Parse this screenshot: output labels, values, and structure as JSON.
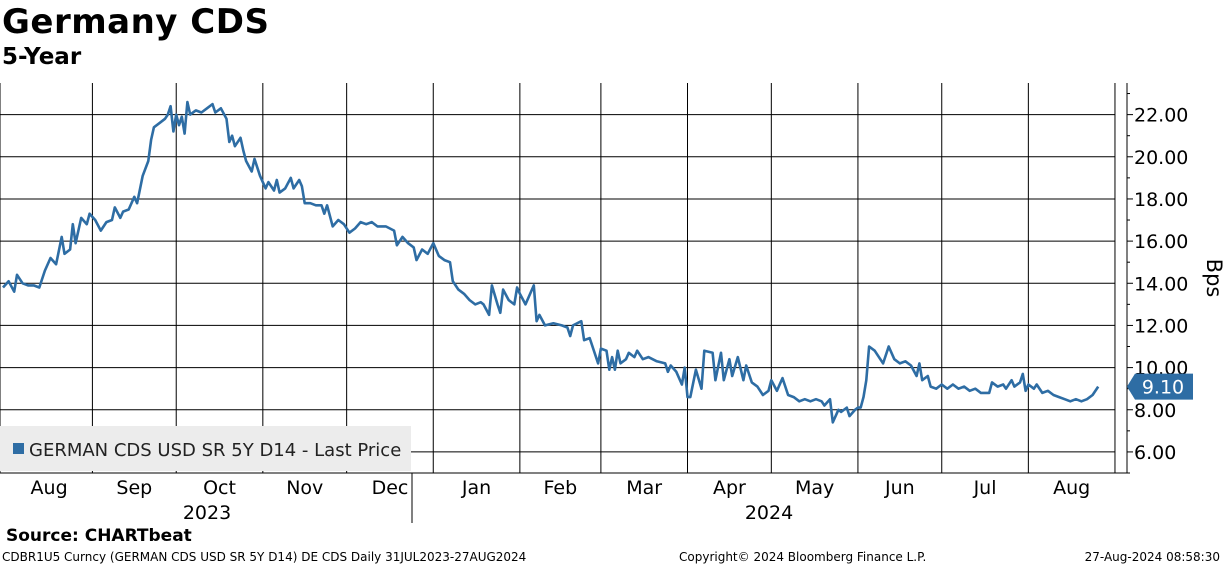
{
  "header": {
    "title": "Germany CDS",
    "subtitle": "5-Year"
  },
  "footer": {
    "source": "Source:  CHARTbeat",
    "ticker_line": "CDBR1U5 Curncy (GERMAN CDS USD SR 5Y D14) DE CDS  Daily 31JUL2023-27AUG2024",
    "copyright": "Copyright© 2024 Bloomberg Finance L.P.",
    "timestamp": "27-Aug-2024 08:58:30"
  },
  "chart_data": {
    "type": "line",
    "ylabel": "Bps",
    "ylim": [
      5.0,
      23.5
    ],
    "y_ticks": [
      6,
      8,
      10,
      12,
      14,
      16,
      18,
      20,
      22
    ],
    "y_tick_labels": [
      "6.00",
      "8.00",
      "10.00",
      "12.00",
      "14.00",
      "16.00",
      "18.00",
      "20.00",
      "22.00"
    ],
    "x_range": [
      "2023-07-31",
      "2024-08-27"
    ],
    "month_labels": [
      "Aug",
      "Sep",
      "Oct",
      "Nov",
      "Dec",
      "Jan",
      "Feb",
      "Mar",
      "Apr",
      "May",
      "Jun",
      "Jul",
      "Aug"
    ],
    "year_labels": [
      "2023",
      "2024"
    ],
    "grid": true,
    "legend": {
      "position": "bottom-left",
      "entries": [
        "GERMAN CDS USD SR 5Y D14 - Last Price"
      ]
    },
    "last_value_label": "9.10",
    "colors": {
      "line": "#2e6da4",
      "badge": "#2e6da4",
      "grid": "#000000"
    },
    "series": [
      {
        "name": "GERMAN CDS USD SR 5Y D14 - Last Price",
        "points": [
          [
            "2023-07-31",
            13.8
          ],
          [
            "2023-08-02",
            14.1
          ],
          [
            "2023-08-04",
            13.6
          ],
          [
            "2023-08-05",
            14.4
          ],
          [
            "2023-08-07",
            14.0
          ],
          [
            "2023-08-09",
            13.9
          ],
          [
            "2023-08-11",
            13.9
          ],
          [
            "2023-08-13",
            13.8
          ],
          [
            "2023-08-15",
            14.6
          ],
          [
            "2023-08-17",
            15.2
          ],
          [
            "2023-08-19",
            14.9
          ],
          [
            "2023-08-21",
            16.2
          ],
          [
            "2023-08-22",
            15.4
          ],
          [
            "2023-08-24",
            15.6
          ],
          [
            "2023-08-25",
            16.8
          ],
          [
            "2023-08-26",
            15.9
          ],
          [
            "2023-08-28",
            17.1
          ],
          [
            "2023-08-30",
            16.8
          ],
          [
            "2023-08-31",
            17.3
          ],
          [
            "2023-09-02",
            17.0
          ],
          [
            "2023-09-04",
            16.5
          ],
          [
            "2023-09-06",
            16.9
          ],
          [
            "2023-09-08",
            17.0
          ],
          [
            "2023-09-09",
            17.6
          ],
          [
            "2023-09-11",
            17.1
          ],
          [
            "2023-09-12",
            17.4
          ],
          [
            "2023-09-14",
            17.5
          ],
          [
            "2023-09-16",
            18.1
          ],
          [
            "2023-09-17",
            17.8
          ],
          [
            "2023-09-19",
            19.1
          ],
          [
            "2023-09-21",
            19.8
          ],
          [
            "2023-09-22",
            20.8
          ],
          [
            "2023-09-23",
            21.4
          ],
          [
            "2023-09-25",
            21.6
          ],
          [
            "2023-09-27",
            21.8
          ],
          [
            "2023-09-28",
            22.0
          ],
          [
            "2023-09-29",
            22.4
          ],
          [
            "2023-09-30",
            21.2
          ],
          [
            "2023-10-01",
            22.0
          ],
          [
            "2023-10-02",
            21.5
          ],
          [
            "2023-10-03",
            21.9
          ],
          [
            "2023-10-04",
            21.1
          ],
          [
            "2023-10-05",
            22.6
          ],
          [
            "2023-10-06",
            22.0
          ],
          [
            "2023-10-08",
            22.2
          ],
          [
            "2023-10-10",
            22.1
          ],
          [
            "2023-10-12",
            22.3
          ],
          [
            "2023-10-14",
            22.5
          ],
          [
            "2023-10-15",
            22.1
          ],
          [
            "2023-10-17",
            22.3
          ],
          [
            "2023-10-19",
            21.8
          ],
          [
            "2023-10-20",
            20.7
          ],
          [
            "2023-10-21",
            21.0
          ],
          [
            "2023-10-22",
            20.5
          ],
          [
            "2023-10-24",
            20.9
          ],
          [
            "2023-10-25",
            20.3
          ],
          [
            "2023-10-26",
            19.8
          ],
          [
            "2023-10-28",
            19.3
          ],
          [
            "2023-10-29",
            19.9
          ],
          [
            "2023-10-31",
            19.1
          ],
          [
            "2023-11-02",
            18.5
          ],
          [
            "2023-11-03",
            18.8
          ],
          [
            "2023-11-05",
            18.4
          ],
          [
            "2023-11-06",
            18.9
          ],
          [
            "2023-11-07",
            18.3
          ],
          [
            "2023-11-09",
            18.5
          ],
          [
            "2023-11-11",
            19.0
          ],
          [
            "2023-11-12",
            18.5
          ],
          [
            "2023-11-14",
            18.9
          ],
          [
            "2023-11-15",
            18.6
          ],
          [
            "2023-11-16",
            17.8
          ],
          [
            "2023-11-18",
            17.8
          ],
          [
            "2023-11-20",
            17.7
          ],
          [
            "2023-11-22",
            17.7
          ],
          [
            "2023-11-23",
            17.3
          ],
          [
            "2023-11-24",
            17.7
          ],
          [
            "2023-11-26",
            16.7
          ],
          [
            "2023-11-28",
            17.0
          ],
          [
            "2023-11-30",
            16.8
          ],
          [
            "2023-12-02",
            16.4
          ],
          [
            "2023-12-04",
            16.6
          ],
          [
            "2023-12-06",
            16.9
          ],
          [
            "2023-12-08",
            16.8
          ],
          [
            "2023-12-10",
            16.9
          ],
          [
            "2023-12-12",
            16.7
          ],
          [
            "2023-12-15",
            16.7
          ],
          [
            "2023-12-18",
            16.5
          ],
          [
            "2023-12-19",
            15.8
          ],
          [
            "2023-12-21",
            16.2
          ],
          [
            "2023-12-23",
            15.9
          ],
          [
            "2023-12-25",
            15.7
          ],
          [
            "2023-12-26",
            15.1
          ],
          [
            "2023-12-28",
            15.6
          ],
          [
            "2023-12-30",
            15.4
          ],
          [
            "2024-01-01",
            15.9
          ],
          [
            "2024-01-03",
            15.3
          ],
          [
            "2024-01-05",
            15.1
          ],
          [
            "2024-01-07",
            15.0
          ],
          [
            "2024-01-08",
            14.1
          ],
          [
            "2024-01-10",
            13.7
          ],
          [
            "2024-01-12",
            13.5
          ],
          [
            "2024-01-14",
            13.2
          ],
          [
            "2024-01-16",
            13.0
          ],
          [
            "2024-01-18",
            13.1
          ],
          [
            "2024-01-19",
            13.0
          ],
          [
            "2024-01-21",
            12.5
          ],
          [
            "2024-01-22",
            13.9
          ],
          [
            "2024-01-24",
            13.0
          ],
          [
            "2024-01-25",
            12.6
          ],
          [
            "2024-01-26",
            13.7
          ],
          [
            "2024-01-28",
            13.2
          ],
          [
            "2024-01-30",
            13.0
          ],
          [
            "2024-01-31",
            13.8
          ],
          [
            "2024-02-01",
            13.5
          ],
          [
            "2024-02-03",
            13.0
          ],
          [
            "2024-02-06",
            13.9
          ],
          [
            "2024-02-07",
            12.2
          ],
          [
            "2024-02-08",
            12.5
          ],
          [
            "2024-02-10",
            12.0
          ],
          [
            "2024-02-13",
            12.1
          ],
          [
            "2024-02-16",
            12.0
          ],
          [
            "2024-02-18",
            11.9
          ],
          [
            "2024-02-19",
            11.5
          ],
          [
            "2024-02-20",
            12.0
          ],
          [
            "2024-02-23",
            12.2
          ],
          [
            "2024-02-24",
            11.3
          ],
          [
            "2024-02-26",
            11.4
          ],
          [
            "2024-02-29",
            10.2
          ],
          [
            "2024-03-01",
            10.9
          ],
          [
            "2024-03-03",
            10.8
          ],
          [
            "2024-03-04",
            9.9
          ],
          [
            "2024-03-05",
            10.5
          ],
          [
            "2024-03-06",
            9.9
          ],
          [
            "2024-03-07",
            10.8
          ],
          [
            "2024-03-08",
            10.2
          ],
          [
            "2024-03-10",
            10.4
          ],
          [
            "2024-03-11",
            10.7
          ],
          [
            "2024-03-13",
            10.5
          ],
          [
            "2024-03-14",
            10.8
          ],
          [
            "2024-03-16",
            10.4
          ],
          [
            "2024-03-18",
            10.5
          ],
          [
            "2024-03-21",
            10.3
          ],
          [
            "2024-03-24",
            10.2
          ],
          [
            "2024-03-25",
            9.8
          ],
          [
            "2024-03-26",
            10.1
          ],
          [
            "2024-03-28",
            9.8
          ],
          [
            "2024-03-30",
            9.2
          ],
          [
            "2024-03-31",
            10.0
          ],
          [
            "2024-04-01",
            8.6
          ],
          [
            "2024-04-02",
            8.6
          ],
          [
            "2024-04-04",
            9.9
          ],
          [
            "2024-04-06",
            9.0
          ],
          [
            "2024-04-07",
            10.8
          ],
          [
            "2024-04-10",
            10.7
          ],
          [
            "2024-04-11",
            9.4
          ],
          [
            "2024-04-13",
            10.7
          ],
          [
            "2024-04-14",
            9.4
          ],
          [
            "2024-04-16",
            10.4
          ],
          [
            "2024-04-17",
            9.6
          ],
          [
            "2024-04-19",
            10.5
          ],
          [
            "2024-04-21",
            9.4
          ],
          [
            "2024-04-22",
            10.1
          ],
          [
            "2024-04-24",
            9.3
          ],
          [
            "2024-04-26",
            9.1
          ],
          [
            "2024-04-28",
            8.7
          ],
          [
            "2024-04-30",
            8.9
          ],
          [
            "2024-05-01",
            9.4
          ],
          [
            "2024-05-03",
            8.9
          ],
          [
            "2024-05-05",
            9.5
          ],
          [
            "2024-05-07",
            8.7
          ],
          [
            "2024-05-09",
            8.6
          ],
          [
            "2024-05-11",
            8.4
          ],
          [
            "2024-05-13",
            8.5
          ],
          [
            "2024-05-15",
            8.4
          ],
          [
            "2024-05-17",
            8.5
          ],
          [
            "2024-05-19",
            8.4
          ],
          [
            "2024-05-20",
            8.2
          ],
          [
            "2024-05-22",
            8.5
          ],
          [
            "2024-05-23",
            7.4
          ],
          [
            "2024-05-25",
            8.0
          ],
          [
            "2024-05-26",
            7.9
          ],
          [
            "2024-05-28",
            8.1
          ],
          [
            "2024-05-29",
            7.7
          ],
          [
            "2024-05-31",
            8.0
          ],
          [
            "2024-06-01",
            8.1
          ],
          [
            "2024-06-02",
            8.1
          ],
          [
            "2024-06-03",
            8.6
          ],
          [
            "2024-06-04",
            9.4
          ],
          [
            "2024-06-05",
            11.0
          ],
          [
            "2024-06-07",
            10.8
          ],
          [
            "2024-06-09",
            10.4
          ],
          [
            "2024-06-10",
            10.2
          ],
          [
            "2024-06-12",
            11.0
          ],
          [
            "2024-06-14",
            10.4
          ],
          [
            "2024-06-16",
            10.2
          ],
          [
            "2024-06-18",
            10.3
          ],
          [
            "2024-06-20",
            10.1
          ],
          [
            "2024-06-22",
            9.6
          ],
          [
            "2024-06-23",
            10.2
          ],
          [
            "2024-06-24",
            9.4
          ],
          [
            "2024-06-26",
            9.6
          ],
          [
            "2024-06-27",
            9.1
          ],
          [
            "2024-06-29",
            9.0
          ],
          [
            "2024-07-01",
            9.2
          ],
          [
            "2024-07-03",
            9.0
          ],
          [
            "2024-07-05",
            9.2
          ],
          [
            "2024-07-07",
            9.0
          ],
          [
            "2024-07-09",
            9.1
          ],
          [
            "2024-07-11",
            8.9
          ],
          [
            "2024-07-13",
            9.0
          ],
          [
            "2024-07-15",
            8.8
          ],
          [
            "2024-07-18",
            8.8
          ],
          [
            "2024-07-19",
            9.3
          ],
          [
            "2024-07-21",
            9.1
          ],
          [
            "2024-07-23",
            9.2
          ],
          [
            "2024-07-24",
            9.0
          ],
          [
            "2024-07-26",
            9.4
          ],
          [
            "2024-07-27",
            9.1
          ],
          [
            "2024-07-29",
            9.3
          ],
          [
            "2024-07-30",
            9.7
          ],
          [
            "2024-07-31",
            8.9
          ],
          [
            "2024-08-01",
            9.2
          ],
          [
            "2024-08-03",
            9.0
          ],
          [
            "2024-08-04",
            9.2
          ],
          [
            "2024-08-06",
            8.8
          ],
          [
            "2024-08-08",
            8.9
          ],
          [
            "2024-08-10",
            8.7
          ],
          [
            "2024-08-12",
            8.6
          ],
          [
            "2024-08-14",
            8.5
          ],
          [
            "2024-08-16",
            8.4
          ],
          [
            "2024-08-18",
            8.5
          ],
          [
            "2024-08-20",
            8.4
          ],
          [
            "2024-08-22",
            8.5
          ],
          [
            "2024-08-24",
            8.7
          ],
          [
            "2024-08-26",
            9.1
          ]
        ]
      }
    ]
  }
}
